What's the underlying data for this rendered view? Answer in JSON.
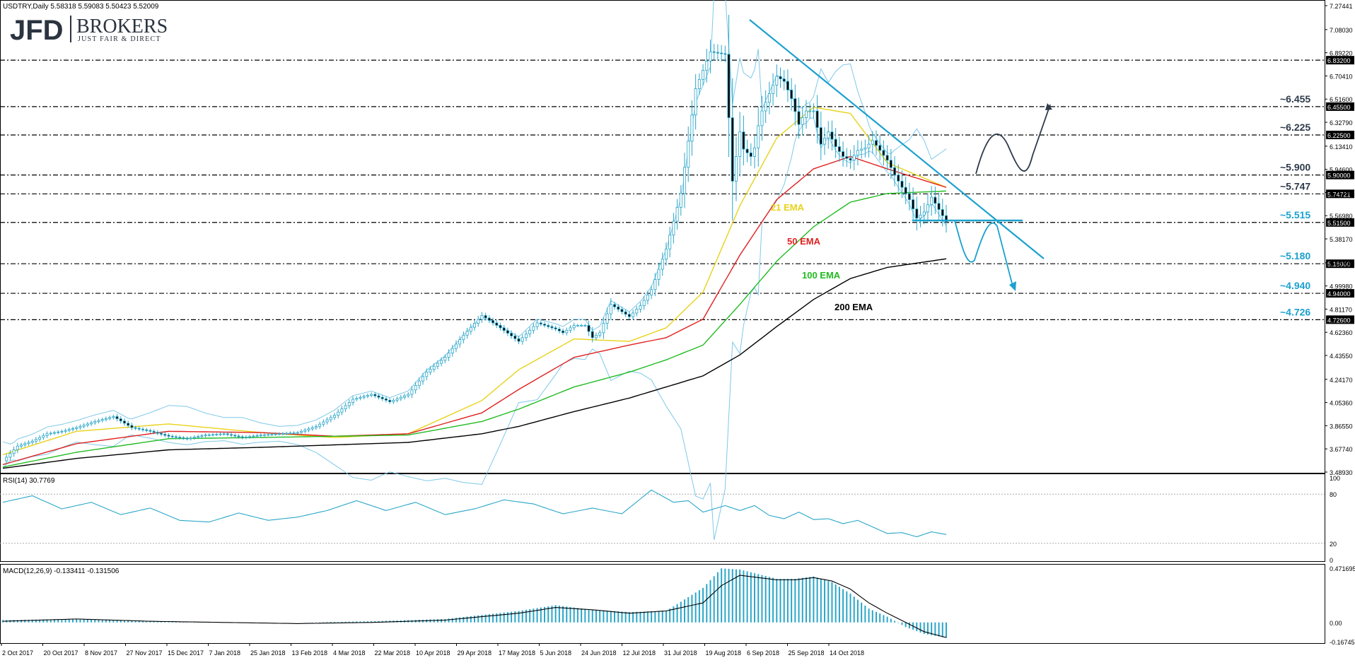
{
  "window": {
    "symbol_header": "USDTRY,Daily  5.58318 5.59083 5.50423 5.52009",
    "rsi_header": "RSI(14) 30.7769",
    "macd_header": "MACD(12,26,9) -0.133411 -0.131506"
  },
  "logo": {
    "jfd": "JFD",
    "brokers": "BROKERS",
    "tagline": "JUST FAIR & DIRECT"
  },
  "colors": {
    "candle": "#2aa6c8",
    "bollinger": "#7fc8e8",
    "ema21": "#e8d21a",
    "ema50": "#e02020",
    "ema100": "#22bb22",
    "ema200": "#000000",
    "trendline": "#1ba1cf",
    "bullish_path": "#2d3a4a",
    "bearish_path": "#1ba1cf",
    "level_label_dark": "#2d3a4a",
    "level_label_blue": "#1ba1cf"
  },
  "chart_data": [
    {
      "type": "line",
      "title": "USDTRY,Daily",
      "subtitle": "5.58318 5.59083 5.50423 5.52009",
      "ylim": [
        3.4893,
        7.27441
      ],
      "price_axis_ticks": [
        "7.27441",
        "7.08030",
        "6.89220",
        "6.70410",
        "6.51600",
        "6.32790",
        "6.13410",
        "5.94600",
        "5.75790",
        "5.56980",
        "5.38170",
        "5.18790",
        "4.99980",
        "4.81170",
        "4.62360",
        "4.43550",
        "4.24170",
        "4.05360",
        "3.86550",
        "3.67740",
        "3.48930"
      ],
      "x_axis_ticks": [
        "2 Oct 2017",
        "20 Oct 2017",
        "8 Nov 2017",
        "27 Nov 2017",
        "15 Dec 2017",
        "7 Jan 2018",
        "25 Jan 2018",
        "13 Feb 2018",
        "4 Mar 2018",
        "22 Mar 2018",
        "10 Apr 2018",
        "29 Apr 2018",
        "17 May 2018",
        "5 Jun 2018",
        "24 Jun 2018",
        "12 Jul 2018",
        "31 Jul 2018",
        "19 Aug 2018",
        "6 Sep 2018",
        "25 Sep 2018",
        "14 Oct 2018"
      ],
      "series": [
        {
          "name": "21 EMA",
          "x": [
            0,
            20,
            45,
            70,
            90,
            110,
            130,
            140,
            155,
            170,
            180,
            190,
            200,
            210,
            220,
            230,
            240,
            256
          ],
          "values": [
            3.63,
            3.82,
            3.88,
            3.81,
            3.77,
            3.8,
            4.07,
            4.32,
            4.57,
            4.55,
            4.66,
            4.95,
            5.65,
            6.2,
            6.45,
            6.4,
            6.0,
            5.8
          ]
        },
        {
          "name": "50 EMA",
          "x": [
            0,
            20,
            45,
            70,
            90,
            110,
            130,
            140,
            155,
            170,
            180,
            190,
            200,
            210,
            220,
            230,
            240,
            256
          ],
          "values": [
            3.55,
            3.72,
            3.82,
            3.81,
            3.78,
            3.8,
            3.97,
            4.16,
            4.42,
            4.52,
            4.58,
            4.73,
            5.25,
            5.7,
            5.95,
            6.05,
            5.95,
            5.8
          ]
        },
        {
          "name": "100 EMA",
          "x": [
            0,
            20,
            45,
            70,
            90,
            110,
            130,
            140,
            155,
            170,
            180,
            190,
            200,
            210,
            220,
            230,
            240,
            256
          ],
          "values": [
            3.53,
            3.65,
            3.76,
            3.77,
            3.78,
            3.79,
            3.9,
            4.0,
            4.18,
            4.3,
            4.4,
            4.52,
            4.85,
            5.2,
            5.48,
            5.68,
            5.75,
            5.77
          ]
        },
        {
          "name": "200 EMA",
          "x": [
            0,
            20,
            45,
            70,
            90,
            110,
            130,
            140,
            155,
            170,
            180,
            190,
            200,
            210,
            220,
            230,
            240,
            256
          ],
          "values": [
            3.52,
            3.6,
            3.67,
            3.69,
            3.71,
            3.73,
            3.8,
            3.86,
            3.98,
            4.09,
            4.18,
            4.27,
            4.44,
            4.67,
            4.89,
            5.06,
            5.15,
            5.22
          ]
        }
      ],
      "ohlc_close_path": {
        "x": [
          0,
          4,
          8,
          12,
          16,
          20,
          25,
          30,
          35,
          40,
          45,
          50,
          55,
          60,
          65,
          70,
          75,
          80,
          85,
          90,
          95,
          100,
          105,
          110,
          115,
          120,
          125,
          130,
          135,
          140,
          145,
          150,
          152,
          155,
          158,
          160,
          162,
          165,
          168,
          170,
          173,
          176,
          180,
          184,
          188,
          192,
          196,
          198,
          200,
          201,
          202,
          203,
          204,
          205,
          206,
          208,
          210,
          212,
          214,
          216,
          218,
          220,
          222,
          224,
          226,
          228,
          230,
          232,
          234,
          236,
          238,
          240,
          242,
          244,
          246,
          248,
          250,
          252,
          254,
          256
        ],
        "close": [
          3.58,
          3.7,
          3.74,
          3.8,
          3.82,
          3.85,
          3.9,
          3.94,
          3.85,
          3.82,
          3.78,
          3.76,
          3.79,
          3.8,
          3.77,
          3.79,
          3.8,
          3.81,
          3.86,
          3.95,
          4.08,
          4.12,
          4.06,
          4.12,
          4.3,
          4.42,
          4.6,
          4.76,
          4.66,
          4.55,
          4.7,
          4.65,
          4.62,
          4.68,
          4.68,
          4.58,
          4.62,
          4.85,
          4.79,
          4.75,
          4.84,
          4.97,
          5.3,
          5.75,
          6.6,
          6.9,
          6.88,
          5.85,
          6.25,
          6.11,
          6.08,
          6.05,
          6.12,
          6.3,
          6.42,
          6.56,
          6.7,
          6.66,
          6.52,
          6.31,
          6.42,
          6.42,
          6.15,
          6.25,
          6.13,
          6.05,
          6.02,
          6.1,
          6.12,
          6.18,
          6.1,
          6.02,
          5.9,
          5.8,
          5.7,
          5.55,
          5.6,
          5.72,
          5.62,
          5.52
        ]
      }
    },
    {
      "type": "line",
      "title": "RSI(14) 30.7769",
      "ylim": [
        0,
        100
      ],
      "axis_ticks": [
        "100",
        "80",
        "20",
        "0"
      ],
      "series": [
        {
          "name": "RSI(14)",
          "x": [
            0,
            8,
            16,
            24,
            32,
            40,
            48,
            56,
            64,
            72,
            80,
            88,
            96,
            104,
            112,
            120,
            128,
            136,
            144,
            152,
            160,
            168,
            176,
            182,
            186,
            190,
            196,
            200,
            204,
            208,
            212,
            216,
            220,
            224,
            228,
            232,
            236,
            240,
            244,
            248,
            252,
            256
          ],
          "values": [
            70,
            78,
            62,
            70,
            55,
            63,
            48,
            46,
            57,
            48,
            52,
            60,
            72,
            60,
            70,
            55,
            62,
            73,
            68,
            56,
            63,
            56,
            85,
            70,
            72,
            58,
            66,
            60,
            66,
            54,
            50,
            58,
            49,
            50,
            44,
            48,
            40,
            32,
            33,
            28,
            34,
            30.7769
          ]
        }
      ]
    },
    {
      "type": "bar",
      "title": "MACD(12,26,9) -0.133411 -0.131506",
      "ylim": [
        -0.167459,
        0.471695
      ],
      "axis_ticks": [
        "0.471695",
        "0.00",
        "-0.167459"
      ],
      "series": [
        {
          "name": "MACD",
          "x": [
            0,
            20,
            40,
            60,
            80,
            100,
            120,
            140,
            150,
            160,
            170,
            180,
            190,
            195,
            200,
            205,
            210,
            215,
            220,
            225,
            230,
            235,
            240,
            245,
            250,
            256
          ],
          "values": [
            0.02,
            0.03,
            0.01,
            0.0,
            0.0,
            0.01,
            0.03,
            0.1,
            0.15,
            0.11,
            0.09,
            0.1,
            0.3,
            0.47,
            0.46,
            0.42,
            0.38,
            0.38,
            0.4,
            0.35,
            0.25,
            0.12,
            0.05,
            -0.04,
            -0.1,
            -0.133411
          ]
        },
        {
          "name": "Signal",
          "x": [
            0,
            20,
            40,
            60,
            80,
            100,
            120,
            140,
            150,
            160,
            170,
            180,
            190,
            195,
            200,
            205,
            210,
            215,
            220,
            225,
            230,
            235,
            240,
            245,
            250,
            256
          ],
          "values": [
            0.01,
            0.03,
            0.01,
            0.0,
            -0.01,
            0.0,
            0.02,
            0.08,
            0.13,
            0.11,
            0.08,
            0.1,
            0.17,
            0.32,
            0.41,
            0.39,
            0.37,
            0.37,
            0.39,
            0.36,
            0.29,
            0.17,
            0.08,
            0.0,
            -0.08,
            -0.131506
          ]
        }
      ]
    }
  ],
  "levels": [
    {
      "value": 6.832,
      "box": "6.83200",
      "label": ""
    },
    {
      "value": 6.455,
      "box": "6.45500",
      "label": "~6.455"
    },
    {
      "value": 6.225,
      "box": "6.22500",
      "label": "~6.225"
    },
    {
      "value": 5.9,
      "box": "5.90000",
      "label": "~5.900"
    },
    {
      "value": 5.74721,
      "box": "5.74721",
      "label": "~5.747"
    },
    {
      "value": 5.515,
      "box": "5.51500",
      "label": "~5.515"
    },
    {
      "value": 5.18,
      "box": "5.18000",
      "label": "~5.180"
    },
    {
      "value": 4.94,
      "box": "4.94000",
      "label": "~4.940"
    },
    {
      "value": 4.726,
      "box": "4.72600",
      "label": "~4.726"
    }
  ],
  "annotations": {
    "ema21": "21 EMA",
    "ema50": "50 EMA",
    "ema100": "100 EMA",
    "ema200": "200 EMA"
  }
}
